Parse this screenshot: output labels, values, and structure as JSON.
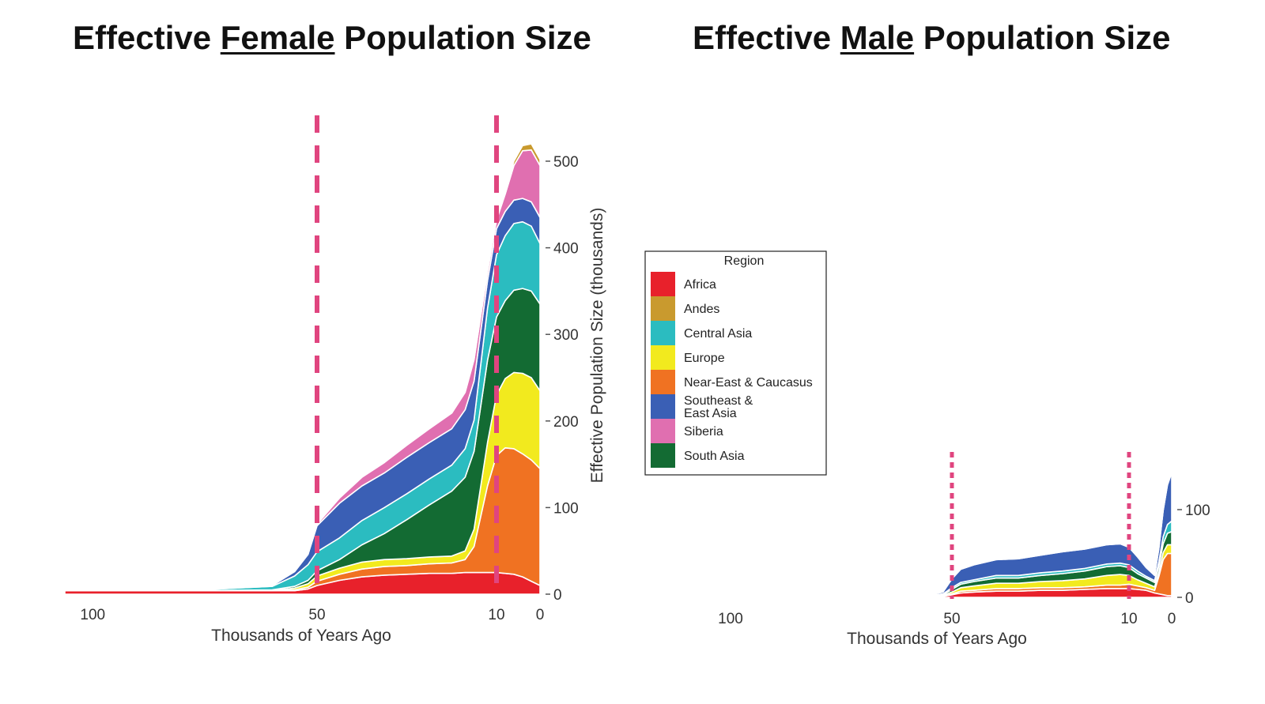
{
  "titles": {
    "female": {
      "pre": "Effective ",
      "em": "Female",
      "post": " Population Size"
    },
    "male": {
      "pre": "Effective ",
      "em": "Male",
      "post": " Population Size"
    }
  },
  "legend": {
    "title": "Region",
    "items": [
      {
        "label": "Africa",
        "color": "#e8212b"
      },
      {
        "label": "Andes",
        "color": "#c99a2e"
      },
      {
        "label": "Central Asia",
        "color": "#2bbcc0"
      },
      {
        "label": "Europe",
        "color": "#f2ea1e"
      },
      {
        "label": "Near-East & Caucasus",
        "color": "#f07222"
      },
      {
        "label": "Southeast &\nEast Asia",
        "color": "#3a5fb5"
      },
      {
        "label": "Siberia",
        "color": "#e06fb0"
      },
      {
        "label": "South Asia",
        "color": "#136b33"
      }
    ]
  },
  "chart_data": [
    {
      "type": "area",
      "title": "Effective Female Population Size",
      "xlabel": "Thousands of Years Ago",
      "ylabel": "Effective Population Size (thousands)",
      "xlim": [
        0,
        112
      ],
      "ylim": [
        0,
        520
      ],
      "x_ticks": [
        100,
        50,
        10,
        0
      ],
      "y_ticks": [
        0,
        100,
        200,
        300,
        400,
        500
      ],
      "vlines": [
        50,
        10
      ],
      "x": [
        112,
        80,
        60,
        55,
        52,
        50,
        45,
        40,
        35,
        30,
        25,
        20,
        17,
        15,
        12,
        10,
        8,
        6,
        4,
        2,
        0
      ],
      "series": [
        {
          "name": "Africa",
          "values": [
            4,
            4,
            4,
            4,
            6,
            10,
            16,
            20,
            22,
            23,
            24,
            24,
            25,
            25,
            25,
            25,
            24,
            23,
            20,
            15,
            10
          ]
        },
        {
          "name": "Near-East & Caucasus",
          "values": [
            0,
            0,
            0,
            1,
            2,
            5,
            7,
            9,
            10,
            10,
            11,
            12,
            15,
            30,
            100,
            135,
            145,
            145,
            142,
            140,
            135
          ]
        },
        {
          "name": "Europe",
          "values": [
            0,
            0,
            0,
            2,
            4,
            6,
            7,
            8,
            8,
            8,
            8,
            8,
            10,
            20,
            50,
            70,
            80,
            88,
            93,
            95,
            90
          ]
        },
        {
          "name": "South Asia",
          "values": [
            0,
            0,
            1,
            2,
            4,
            6,
            10,
            20,
            30,
            45,
            60,
            75,
            85,
            90,
            95,
            90,
            90,
            95,
            98,
            100,
            100
          ]
        },
        {
          "name": "Central Asia",
          "values": [
            0,
            0,
            4,
            12,
            18,
            22,
            25,
            28,
            30,
            30,
            30,
            30,
            33,
            36,
            60,
            72,
            75,
            77,
            77,
            75,
            70
          ]
        },
        {
          "name": "Southeast & East Asia",
          "values": [
            0,
            0,
            1,
            5,
            12,
            30,
            40,
            40,
            40,
            42,
            42,
            42,
            45,
            45,
            32,
            30,
            28,
            27,
            27,
            28,
            30
          ]
        },
        {
          "name": "Siberia",
          "values": [
            0,
            0,
            0,
            0,
            1,
            2,
            6,
            10,
            12,
            14,
            16,
            18,
            20,
            25,
            10,
            10,
            20,
            40,
            55,
            60,
            60
          ]
        },
        {
          "name": "Andes",
          "values": [
            0,
            0,
            0,
            0,
            0,
            0,
            0,
            0,
            0,
            0,
            0,
            0,
            0,
            0,
            1,
            2,
            3,
            5,
            6,
            7,
            7
          ]
        }
      ]
    },
    {
      "type": "area",
      "title": "Effective Male Population Size",
      "xlabel": "Thousands of Years Ago",
      "ylabel": "",
      "xlim": [
        0,
        115
      ],
      "ylim": [
        0,
        150
      ],
      "x_ticks": [
        100,
        50,
        10,
        0
      ],
      "y_ticks": [
        0,
        100
      ],
      "vlines": [
        50,
        10
      ],
      "x": [
        115,
        70,
        55,
        52,
        50,
        48,
        45,
        40,
        35,
        30,
        25,
        20,
        15,
        12,
        10,
        8,
        6,
        4,
        3,
        2,
        1,
        0
      ],
      "series": [
        {
          "name": "Africa",
          "values": [
            1,
            1,
            1,
            1,
            3,
            5,
            6,
            7,
            7,
            8,
            8,
            9,
            10,
            10,
            10,
            9,
            8,
            5,
            4,
            3,
            2,
            2
          ]
        },
        {
          "name": "Near-East & Caucasus",
          "values": [
            0,
            0,
            0,
            0,
            1,
            2,
            2,
            3,
            3,
            3,
            3,
            3,
            4,
            4,
            5,
            4,
            3,
            3,
            20,
            40,
            48,
            48
          ]
        },
        {
          "name": "Europe",
          "values": [
            0,
            0,
            0,
            1,
            2,
            4,
            5,
            6,
            6,
            7,
            8,
            9,
            11,
            12,
            10,
            7,
            5,
            4,
            5,
            8,
            10,
            10
          ]
        },
        {
          "name": "South Asia",
          "values": [
            0,
            0,
            1,
            1,
            3,
            4,
            5,
            6,
            6,
            7,
            8,
            9,
            10,
            10,
            9,
            7,
            6,
            5,
            7,
            10,
            13,
            15
          ]
        },
        {
          "name": "Central Asia",
          "values": [
            0,
            0,
            0,
            1,
            2,
            2,
            2,
            3,
            3,
            3,
            3,
            3,
            3,
            3,
            3,
            3,
            2,
            2,
            5,
            8,
            10,
            12
          ]
        },
        {
          "name": "Southeast & East Asia",
          "values": [
            0,
            0,
            1,
            2,
            10,
            15,
            17,
            18,
            19,
            20,
            22,
            22,
            22,
            22,
            20,
            16,
            10,
            6,
            15,
            30,
            45,
            55
          ]
        },
        {
          "name": "Siberia",
          "values": [
            0,
            0,
            1,
            1,
            1,
            1,
            1,
            1,
            1,
            1,
            1,
            1,
            1,
            1,
            1,
            1,
            1,
            1,
            1,
            1,
            1,
            1
          ]
        },
        {
          "name": "Andes",
          "values": [
            0,
            0,
            0,
            0,
            0,
            0,
            0,
            0,
            0,
            0,
            0,
            0,
            0,
            1,
            1,
            1,
            1,
            1,
            1,
            1,
            1,
            1
          ]
        }
      ]
    }
  ]
}
